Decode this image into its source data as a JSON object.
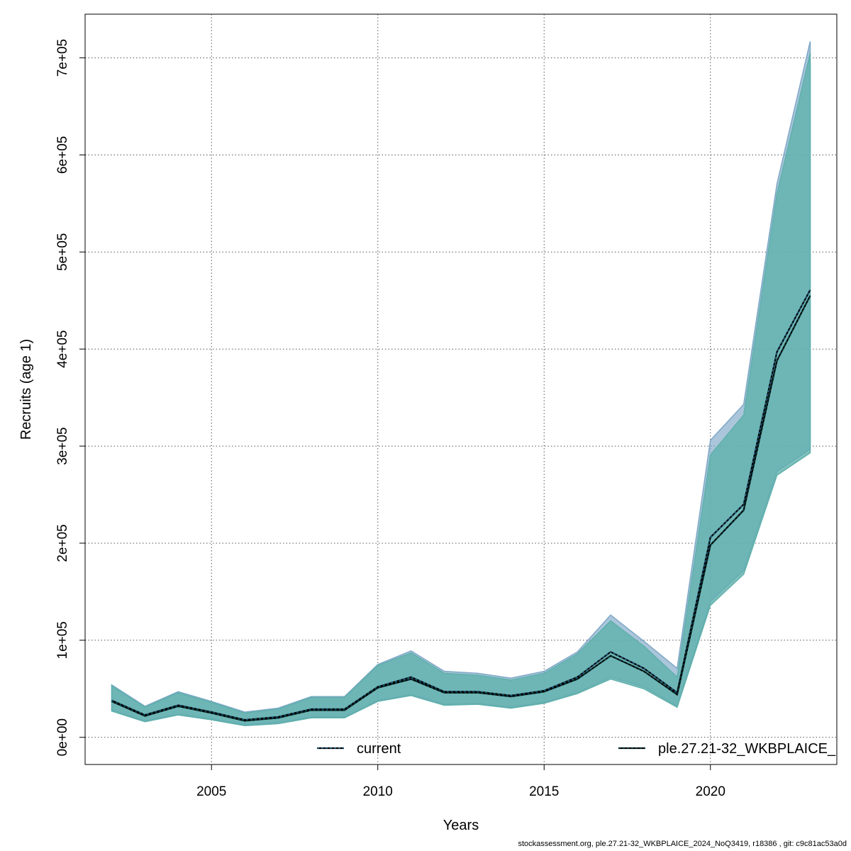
{
  "chart_data": {
    "type": "area",
    "xlabel": "Years",
    "ylabel": "Recruits (age 1)",
    "xlim": [
      2001.2,
      2023.8
    ],
    "ylim": [
      -28000,
      745000
    ],
    "x_ticks": [
      2005,
      2010,
      2015,
      2020
    ],
    "x_tick_labels": [
      "2005",
      "2010",
      "2015",
      "2020"
    ],
    "y_ticks": [
      0,
      100000,
      200000,
      300000,
      400000,
      500000,
      600000,
      700000
    ],
    "y_tick_labels": [
      "0e+00",
      "1e+05",
      "2e+05",
      "3e+05",
      "4e+05",
      "5e+05",
      "6e+05",
      "7e+05"
    ],
    "grid": true,
    "legend_position": "bottom",
    "x": [
      2002,
      2003,
      2004,
      2005,
      2006,
      2007,
      2008,
      2009,
      2010,
      2011,
      2012,
      2013,
      2014,
      2015,
      2016,
      2017,
      2018,
      2019,
      2020,
      2021,
      2022,
      2023
    ],
    "series": [
      {
        "name": "current",
        "color": "#1f5f8b",
        "band_color": "#7ea7c7",
        "values": [
          38000,
          23000,
          33000,
          26000,
          18000,
          21000,
          29000,
          29000,
          52000,
          62000,
          47000,
          47000,
          43000,
          48000,
          62000,
          88000,
          71000,
          46000,
          206000,
          240000,
          397000,
          461000
        ],
        "lower": [
          28000,
          17000,
          24000,
          19000,
          13000,
          15000,
          21000,
          21000,
          38000,
          44000,
          34000,
          35000,
          31000,
          36000,
          46000,
          62000,
          52000,
          32000,
          140000,
          172000,
          274000,
          297000
        ],
        "upper": [
          54000,
          32000,
          47000,
          37000,
          26000,
          30000,
          42000,
          42000,
          75000,
          89000,
          68000,
          66000,
          61000,
          68000,
          88000,
          126000,
          99000,
          71000,
          306000,
          343000,
          570000,
          717000
        ]
      },
      {
        "name": "ple.27.21-32_WKBPLAICE_",
        "color": "#003d3d",
        "band_color": "#5fb0ac",
        "values": [
          37000,
          22000,
          32000,
          25000,
          17000,
          20000,
          28000,
          28000,
          51000,
          60000,
          46000,
          46000,
          42000,
          47000,
          60000,
          84000,
          68000,
          44000,
          198000,
          234000,
          388000,
          455000
        ],
        "lower": [
          27000,
          16000,
          23000,
          18000,
          12000,
          14000,
          20000,
          20000,
          37000,
          43000,
          33000,
          34000,
          30000,
          35000,
          45000,
          60000,
          50000,
          31000,
          136000,
          168000,
          270000,
          293000
        ],
        "upper": [
          53000,
          31000,
          46000,
          36000,
          25000,
          29000,
          41000,
          41000,
          74000,
          87000,
          66000,
          64000,
          59000,
          66000,
          86000,
          120000,
          94000,
          62000,
          291000,
          332000,
          560000,
          705000
        ]
      }
    ]
  },
  "footer": "stockassessment.org, ple.27.21-32_WKBPLAICE_2024_NoQ3419, r18386 , git: c9c81ac53a0d"
}
